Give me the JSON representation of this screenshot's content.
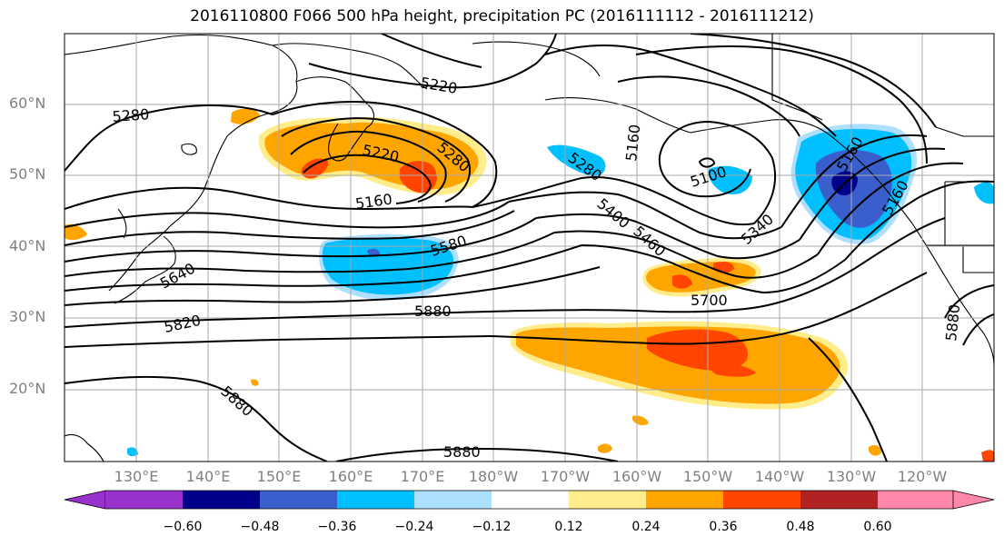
{
  "title": "2016110800 F066 500 hPa height, precipitation PC (2016111112 - 2016111212)",
  "lat_labels": [
    "60°N",
    "50°N",
    "40°N",
    "30°N",
    "20°N"
  ],
  "lon_labels": [
    "130°E",
    "140°E",
    "150°E",
    "160°E",
    "170°E",
    "180°W",
    "170°W",
    "160°W",
    "150°W",
    "140°W",
    "130°W",
    "120°W"
  ],
  "contour_labels": [
    "5280",
    "5220",
    "5220",
    "5280",
    "5160",
    "5580",
    "5640",
    "5820",
    "5880",
    "5880",
    "5880",
    "5280",
    "5160",
    "5100",
    "5400",
    "5460",
    "5700",
    "5340",
    "5160",
    "5160",
    "5880"
  ],
  "colorbar": {
    "ticks": [
      "−0.60",
      "−0.48",
      "−0.36",
      "−0.24",
      "−0.12",
      "0.12",
      "0.24",
      "0.36",
      "0.48",
      "0.60"
    ],
    "colors": [
      "#9932CC",
      "#00008B",
      "#3A5FCD",
      "#00BFFF",
      "#ADDFFF",
      "#FFFFFF",
      "#FFEC8B",
      "#FFA500",
      "#FF4500",
      "#B22222",
      "#FF88AA"
    ]
  },
  "palette": {
    "orange": "#FFA500",
    "red": "#FF4500",
    "yellow": "#FFEC8B",
    "lightblue": "#ADDFFF",
    "cyan": "#00BFFF",
    "blue": "#3A5FCD",
    "navy": "#00008B"
  }
}
